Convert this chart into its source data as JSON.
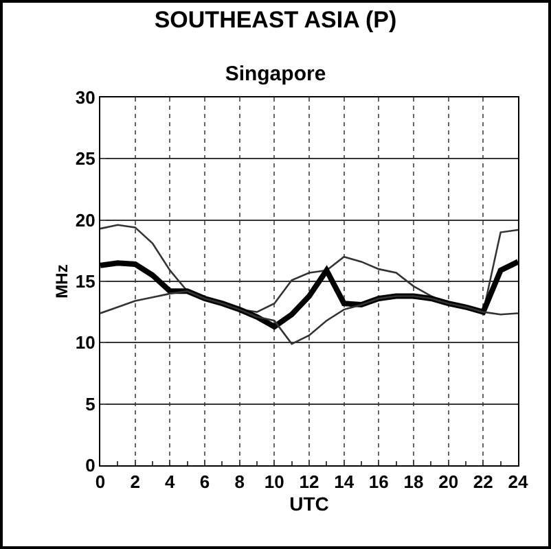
{
  "chart_data": {
    "type": "line",
    "title": "SOUTHEAST ASIA (P)",
    "subtitle": "Singapore",
    "xlabel": "UTC",
    "ylabel": "MHz",
    "x": [
      0,
      1,
      2,
      3,
      4,
      5,
      6,
      7,
      8,
      9,
      10,
      11,
      12,
      13,
      14,
      15,
      16,
      17,
      18,
      19,
      20,
      21,
      22,
      23,
      24
    ],
    "series": [
      {
        "color": "#333333",
        "values": [
          19.3,
          19.6,
          19.4,
          18.1,
          15.9,
          14.2,
          13.6,
          13.2,
          12.7,
          12.5,
          13.2,
          15.1,
          15.7,
          15.9,
          17.0,
          16.6,
          16.0,
          15.7,
          14.6,
          13.8,
          13.2,
          12.9,
          12.5,
          19.0,
          19.2
        ]
      },
      {
        "color": "#000000",
        "values": [
          16.3,
          16.5,
          16.4,
          15.5,
          14.2,
          14.2,
          13.6,
          13.2,
          12.7,
          12.1,
          11.3,
          12.3,
          13.8,
          15.9,
          13.2,
          13.1,
          13.6,
          13.8,
          13.8,
          13.6,
          13.2,
          12.9,
          12.5,
          15.9,
          16.6
        ]
      },
      {
        "color": "#333333",
        "values": [
          12.4,
          12.9,
          13.4,
          13.7,
          14.0,
          14.2,
          13.6,
          13.2,
          12.7,
          12.1,
          11.8,
          9.9,
          10.6,
          11.8,
          12.7,
          13.1,
          13.6,
          13.8,
          13.8,
          13.6,
          13.2,
          12.9,
          12.5,
          12.3,
          12.4
        ]
      }
    ],
    "xlim": [
      0,
      24
    ],
    "xticks": [
      0,
      2,
      4,
      6,
      8,
      10,
      12,
      14,
      16,
      18,
      20,
      22,
      24
    ],
    "ylim": [
      0,
      30
    ],
    "yticks": [
      0,
      5,
      10,
      15,
      20,
      25,
      30
    ],
    "grid": true,
    "marker": "none",
    "line_style": "solid"
  }
}
